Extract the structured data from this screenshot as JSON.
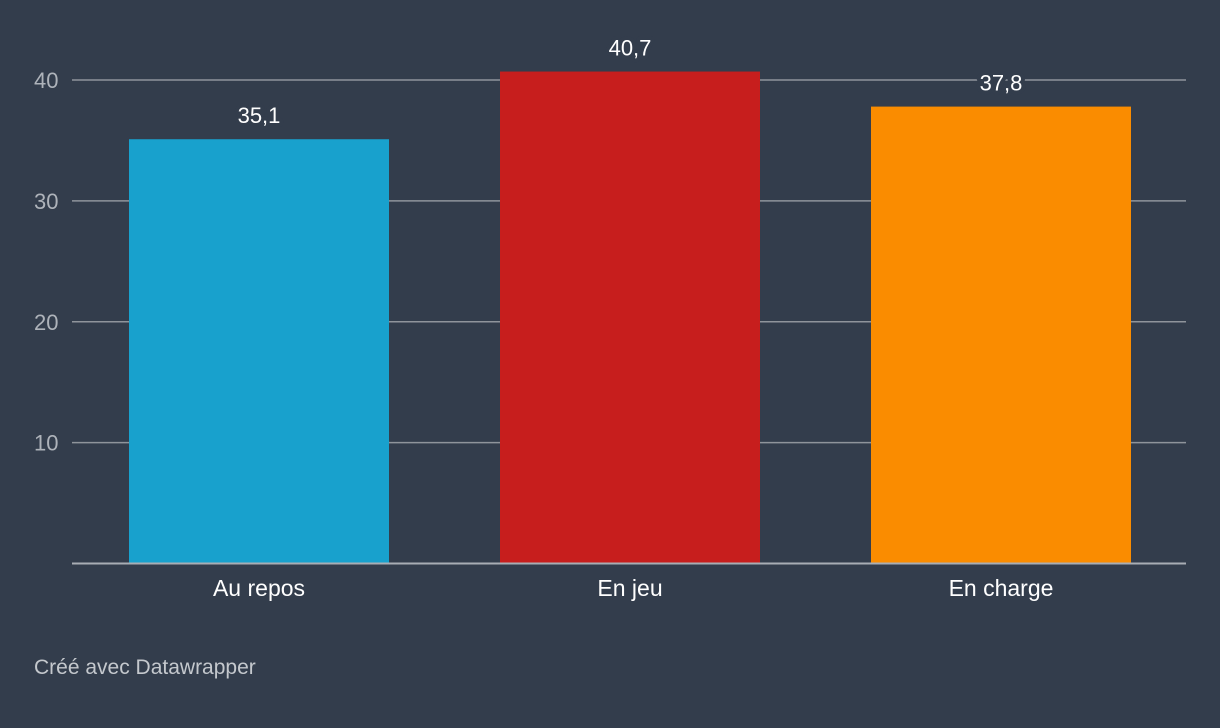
{
  "chart_data": {
    "type": "bar",
    "categories": [
      "Au repos",
      "En jeu",
      "En charge"
    ],
    "values": [
      35.1,
      40.7,
      37.8
    ],
    "value_labels": [
      "35,1",
      "40,7",
      "37,8"
    ],
    "colors": [
      "#18a1cd",
      "#c71e1d",
      "#fa8c00"
    ],
    "ylim": [
      0,
      40
    ],
    "yticks": [
      10,
      20,
      30,
      40
    ],
    "ytick_labels": [
      "10",
      "20",
      "30",
      "40"
    ],
    "grid": true,
    "legend": "none",
    "background": "#333d4c",
    "gridline_color": "#8f949b"
  },
  "footer": {
    "credit": "Créé avec Datawrapper"
  }
}
